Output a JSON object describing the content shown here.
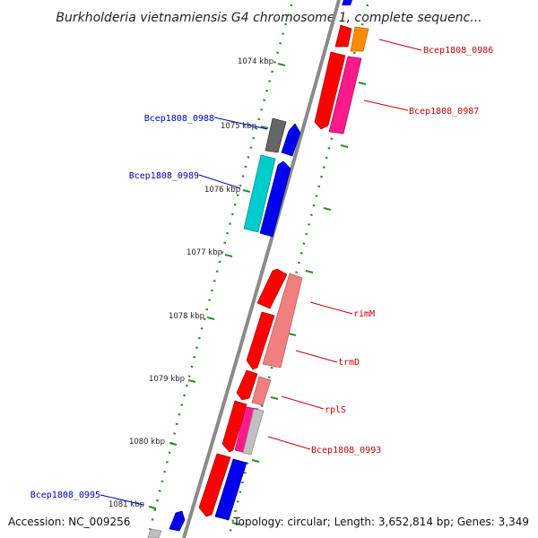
{
  "title": "Burkholderia vietnamiensis G4 chromosome 1, complete sequenc...",
  "accession": "Accession: NC_009256",
  "topology": "Topology: circular; Length: 3,652,814 bp; Genes: 3,349",
  "colors": {
    "backbone": "#808080",
    "tick": "#2e8b2e",
    "label_red": "#cc0000",
    "label_blue": "#0000bb"
  },
  "kbp_labels": [
    "1074 kbp",
    "1075 kbp",
    "1076 kbp",
    "1077 kbp",
    "1078 kbp",
    "1079 kbp",
    "1080 kbp",
    "1081 kbp"
  ],
  "gene_labels": [
    {
      "text": "Bcep1808_0986",
      "color": "red"
    },
    {
      "text": "Bcep1808_0987",
      "color": "red"
    },
    {
      "text": "Bcep1808_0988",
      "color": "blue"
    },
    {
      "text": "Bcep1808_0989",
      "color": "blue"
    },
    {
      "text": "rimM",
      "color": "red"
    },
    {
      "text": "trmD",
      "color": "red"
    },
    {
      "text": "rplS",
      "color": "red"
    },
    {
      "text": "Bcep1808_0993",
      "color": "red"
    },
    {
      "text": "Bcep1808_0995",
      "color": "blue"
    }
  ]
}
